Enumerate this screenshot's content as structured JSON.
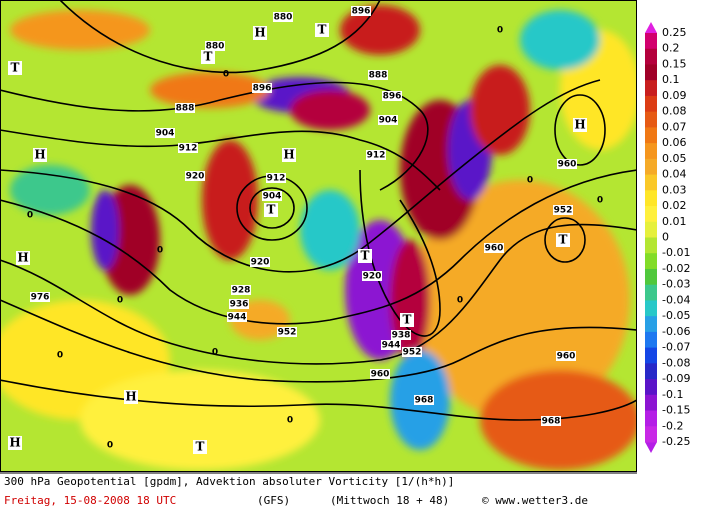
{
  "map": {
    "contour_labels": [
      "880",
      "880",
      "888",
      "896",
      "888",
      "904",
      "912",
      "896",
      "904",
      "912",
      "920",
      "904",
      "912",
      "920",
      "928",
      "936",
      "944",
      "952",
      "920",
      "938",
      "944",
      "952",
      "960",
      "968",
      "968",
      "960",
      "952",
      "960",
      "960",
      "976",
      "896"
    ],
    "pressure_centers": [
      "T",
      "T",
      "H",
      "T",
      "H",
      "H",
      "T",
      "H",
      "T",
      "H",
      "T",
      "T",
      "H",
      "H",
      "T"
    ],
    "zero_labels": [
      "0",
      "0",
      "0",
      "0",
      "0",
      "0",
      "0",
      "0",
      "0",
      "0",
      "0",
      "0"
    ]
  },
  "colorbar": {
    "labels": [
      "0.25",
      "0.2",
      "0.15",
      "0.1",
      "0.09",
      "0.08",
      "0.07",
      "0.06",
      "0.05",
      "0.04",
      "0.03",
      "0.02",
      "0.01",
      "0",
      "-0.01",
      "-0.02",
      "-0.03",
      "-0.04",
      "-0.05",
      "-0.06",
      "-0.07",
      "-0.08",
      "-0.09",
      "-0.1",
      "-0.15",
      "-0.2",
      "-0.25"
    ],
    "colors": [
      "#d2006e",
      "#b4003c",
      "#a00028",
      "#c81e1e",
      "#dc3c14",
      "#e65a14",
      "#f07814",
      "#f5961e",
      "#f5aa28",
      "#fac828",
      "#ffe628",
      "#fff03c",
      "#e6f03c",
      "#b4e632",
      "#82dc28",
      "#50c83c",
      "#3cc88c",
      "#28c8c8",
      "#28a0e6",
      "#1e78f0",
      "#1446e6",
      "#2828c8",
      "#5a14c8",
      "#8c14d2",
      "#b41ee6",
      "#c828e6"
    ]
  },
  "footer": {
    "title": "300 hPa Geopotential [gpdm], Advektion absoluter Vorticity [1/(h*h)]",
    "date": "Freitag, 15-08-2008  18 UTC",
    "model": "(GFS)",
    "run": "(Mittwoch 18 + 48)",
    "credit": "© www.wetter3.de"
  }
}
